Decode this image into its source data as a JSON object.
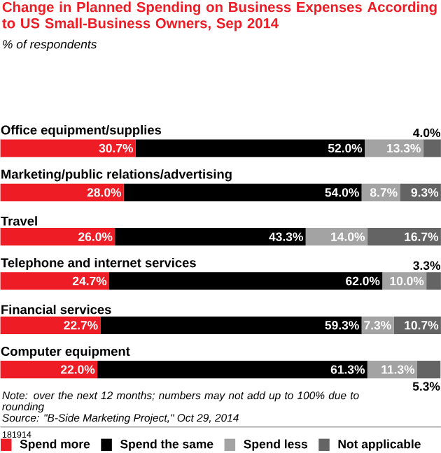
{
  "chart_data": {
    "type": "bar",
    "orientation": "horizontal",
    "stacked": true,
    "title": "Change in Planned Spending on Business Expenses According to US Small-Business Owners, Sep 2014",
    "subtitle": "% of respondents",
    "categories": [
      "Office equipment/supplies",
      "Marketing/public relations/advertising",
      "Travel",
      "Telephone and internet services",
      "Financial services",
      "Computer equipment"
    ],
    "series": [
      {
        "name": "Spend more",
        "color": "#ee1c24",
        "values": [
          30.7,
          28.0,
          26.0,
          24.7,
          22.7,
          22.0
        ],
        "value_labels": [
          "30.7%",
          "28.0%",
          "26.0%",
          "24.7%",
          "22.7%",
          "22.0%"
        ]
      },
      {
        "name": "Spend the same",
        "color": "#000000",
        "values": [
          52.0,
          54.0,
          43.3,
          62.0,
          59.3,
          61.3
        ],
        "value_labels": [
          "52.0%",
          "54.0%",
          "43.3%",
          "62.0%",
          "59.3%",
          "61.3%"
        ]
      },
      {
        "name": "Spend less",
        "color": "#a3a3a3",
        "values": [
          13.3,
          8.7,
          14.0,
          10.0,
          7.3,
          11.3
        ],
        "value_labels": [
          "13.3%",
          "8.7%",
          "14.0%",
          "10.0%",
          "7.3%",
          "11.3%"
        ]
      },
      {
        "name": "Not applicable",
        "color": "#646464",
        "values": [
          4.0,
          9.3,
          16.7,
          3.3,
          10.7,
          5.3
        ],
        "value_labels": [
          "4.0%",
          "9.3%",
          "16.7%",
          "3.3%",
          "10.7%",
          "5.3%"
        ]
      }
    ],
    "data_labels": false,
    "legend": "bottom",
    "annotations": [
      "Note: over the next 12 months; numbers may not add up to 100% due to rounding",
      "Source: \"B-Side Marketing Project,\" Oct 29, 2014",
      "181914"
    ]
  }
}
